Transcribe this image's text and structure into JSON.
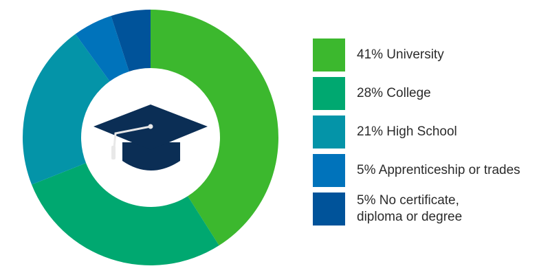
{
  "chart_data": {
    "type": "pie",
    "variant": "donut",
    "title": "",
    "categories": [
      "University",
      "College",
      "High School",
      "Apprenticeship or trades",
      "No certificate, diploma or degree"
    ],
    "values": [
      41,
      28,
      21,
      5,
      5
    ],
    "unit": "%",
    "colors": [
      "#3cb82e",
      "#00a870",
      "#0494a8",
      "#0073bb",
      "#00539a"
    ],
    "legend_position": "right",
    "center_icon": "graduation-cap-icon"
  },
  "legend": [
    {
      "label": "41% University",
      "color": "#3cb82e"
    },
    {
      "label": "28% College",
      "color": "#00a870"
    },
    {
      "label": "21% High School",
      "color": "#0494a8"
    },
    {
      "label": "5% Apprenticeship or trades",
      "color": "#0073bb"
    },
    {
      "label": "5% No certificate,\ndiploma or degree",
      "color": "#00539a"
    }
  ],
  "icon_colors": {
    "cap": "#0b2e55",
    "tassel": "#e8e8e8"
  }
}
